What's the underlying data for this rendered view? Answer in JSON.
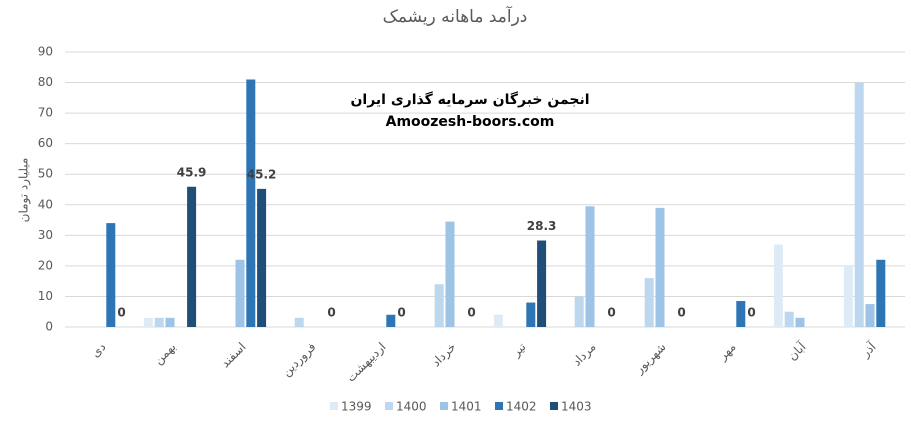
{
  "chart_data": {
    "type": "bar",
    "title": "درآمد ماهانه ریشمک",
    "y_label": "میلیارد تومان",
    "annotations": [
      "انجمن خبرگان سرمایه گذاری ایران",
      "Amoozesh-boors.com"
    ],
    "categories": [
      "دی",
      "بهمن",
      "اسفند",
      "فروردین",
      "اردیبهشت",
      "خرداد",
      "تیر",
      "مرداد",
      "شهریور",
      "مهر",
      "آبان",
      "آذر"
    ],
    "series": [
      {
        "name": "1399",
        "color": "#deebf7",
        "values": [
          null,
          3,
          null,
          null,
          null,
          null,
          4,
          null,
          null,
          null,
          27,
          20
        ]
      },
      {
        "name": "1400",
        "color": "#bdd7ee",
        "values": [
          null,
          3,
          null,
          3,
          null,
          14,
          null,
          10,
          16,
          null,
          5,
          80
        ]
      },
      {
        "name": "1401",
        "color": "#9dc3e6",
        "values": [
          null,
          3,
          22,
          null,
          null,
          34.5,
          null,
          39.5,
          39,
          null,
          3,
          7.5
        ]
      },
      {
        "name": "1402",
        "color": "#2e75b6",
        "values": [
          34,
          null,
          81,
          null,
          4,
          null,
          8,
          null,
          null,
          8.5,
          null,
          22
        ]
      },
      {
        "name": "1403",
        "color": "#1f4e79",
        "values": [
          0,
          45.9,
          45.2,
          0,
          0,
          0,
          28.3,
          0,
          0,
          0,
          null,
          null
        ],
        "data_labels": true
      }
    ],
    "ylim": [
      0,
      90
    ],
    "yticks": [
      0,
      10,
      20,
      30,
      40,
      50,
      60,
      70,
      80,
      90
    ],
    "grid": true,
    "legend": "bottom"
  }
}
